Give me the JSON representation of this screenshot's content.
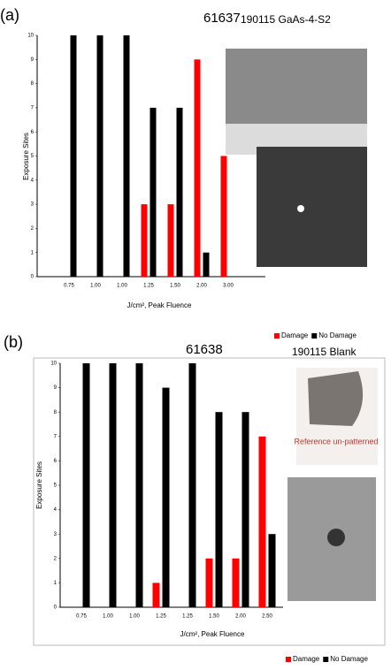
{
  "chart_data": [
    {
      "type": "bar",
      "panel": "(a)",
      "title": "61637",
      "subtitle": "190115 GaAs-4-S2",
      "x_label": "J/cm², Peak Fluence",
      "y_label": "Exposure Sites",
      "categories": [
        "0.75",
        "1.00",
        "1.00",
        "1.25",
        "1.50",
        "2.00",
        "3.00"
      ],
      "series": [
        {
          "name": "Damage",
          "color": "#ff0000",
          "values": [
            0,
            0,
            0,
            3,
            3,
            9,
            5
          ]
        },
        {
          "name": "No Damage",
          "color": "#000000",
          "values": [
            10,
            10,
            10,
            7,
            7,
            1,
            0
          ]
        }
      ],
      "ylim": [
        0,
        10
      ],
      "yticks": [
        0,
        1,
        2,
        3,
        4,
        5,
        6,
        7,
        8,
        9,
        10
      ],
      "legend": "bottom-right"
    },
    {
      "type": "bar",
      "panel": "(b)",
      "title": "61638",
      "subtitle": "190115 Blank",
      "x_label": "J/cm², Peak Fluence",
      "y_label": "Exposure Sites",
      "annotations": [
        "Reference un-patterned"
      ],
      "categories": [
        "0.75",
        "1.00",
        "1.00",
        "1.25",
        "1.25",
        "1.50",
        "2.00",
        "2.50"
      ],
      "series": [
        {
          "name": "Damage",
          "color": "#ff0000",
          "values": [
            0,
            0,
            0,
            1,
            0,
            2,
            2,
            7
          ]
        },
        {
          "name": "No Damage",
          "color": "#000000",
          "values": [
            10,
            10,
            10,
            9,
            10,
            8,
            8,
            3
          ]
        }
      ],
      "ylim": [
        0,
        10
      ],
      "yticks": [
        0,
        1,
        2,
        3,
        4,
        5,
        6,
        7,
        8,
        9,
        10
      ],
      "legend": "bottom-right"
    }
  ]
}
